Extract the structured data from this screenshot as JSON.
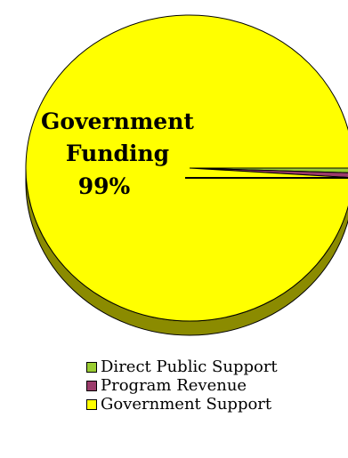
{
  "chart_data": {
    "type": "pie",
    "title": "",
    "slices": [
      {
        "label": "Direct Public Support",
        "value": 0.5,
        "color": "#9acd32"
      },
      {
        "label": "Program Revenue",
        "value": 0.5,
        "color": "#9b3b6b"
      },
      {
        "label": "Government Support",
        "value": 99,
        "color": "#ffff00"
      }
    ],
    "annotation": {
      "lines": [
        "Government",
        "Funding",
        "99%"
      ]
    },
    "legend_position": "bottom"
  }
}
